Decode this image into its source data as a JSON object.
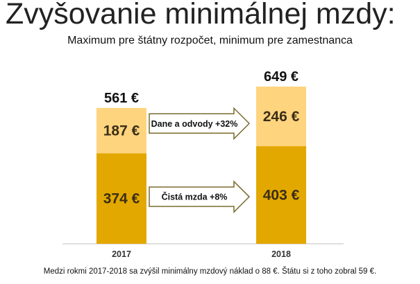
{
  "title": "Zvyšovanie minimálnej mzdy:",
  "subtitle": "Maximum pre štátny rozpočet, minimum pre zamestnanca",
  "footnote": "Medzi rokmi 2017-2018 sa zvýšil minimálny mzdový náklad o 88 €. Štátu si z toho zobral 59 €.",
  "colors": {
    "bottom": "#E3A800",
    "top": "#FFD47F",
    "axis": "#BFBFBF",
    "arrow_stroke": "#7A6A2E"
  },
  "chart_data": {
    "type": "bar",
    "stacked": true,
    "categories": [
      "2017",
      "2018"
    ],
    "series": [
      {
        "values": [
          374,
          403
        ],
        "labels": [
          "374 €",
          "403 €"
        ],
        "color": "#E3A800"
      },
      {
        "values": [
          187,
          246
        ],
        "labels": [
          "187 €",
          "246 €"
        ],
        "color": "#FFD47F"
      }
    ],
    "totals": [
      561,
      649
    ],
    "total_labels": [
      "561 €",
      "649 €"
    ],
    "annotations": [
      {
        "text": "Dane a odvody +32%",
        "series": 1
      },
      {
        "text": "Čistá mzda +8%",
        "series": 0
      }
    ],
    "ylim": [
      0,
      649
    ],
    "grid": false,
    "legend": "none"
  }
}
